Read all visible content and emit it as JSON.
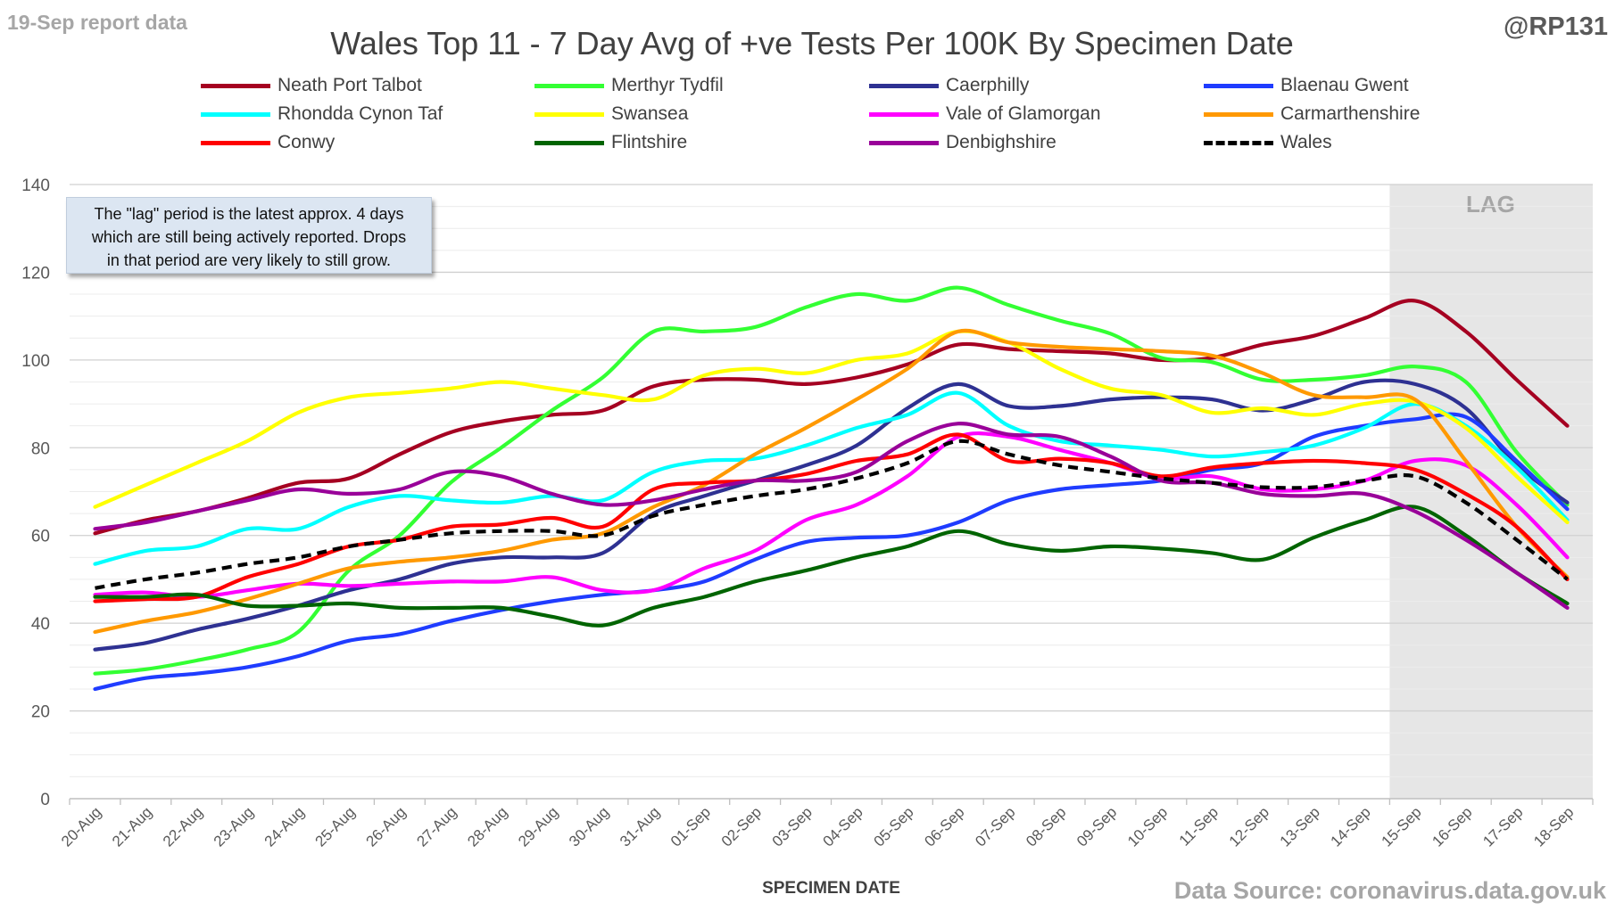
{
  "header": {
    "report_date": "19-Sep report data",
    "handle": "@RP131",
    "title": "Wales Top 11 - 7 Day Avg of +ve Tests Per 100K By Specimen Date",
    "source": "Data Source: coronavirus.data.gov.uk"
  },
  "note": {
    "line1": "The \"lag\" period is the latest approx. 4 days",
    "line2": "which are still being actively reported.  Drops",
    "line3": "in that period are very likely to still grow."
  },
  "chart_data": {
    "type": "line",
    "title": "Wales Top 11 - 7 Day Avg of +ve Tests Per 100K By Specimen Date",
    "xlabel": "SPECIMEN DATE",
    "ylabel": "",
    "ylim": [
      0,
      140
    ],
    "yticks": [
      0,
      20,
      40,
      60,
      80,
      100,
      120,
      140
    ],
    "grid": true,
    "legend_position": "top",
    "lag_label": "LAG",
    "lag_start": "15-Sep",
    "categories": [
      "20-Aug",
      "21-Aug",
      "22-Aug",
      "23-Aug",
      "24-Aug",
      "25-Aug",
      "26-Aug",
      "27-Aug",
      "28-Aug",
      "29-Aug",
      "30-Aug",
      "31-Aug",
      "01-Sep",
      "02-Sep",
      "03-Sep",
      "04-Sep",
      "05-Sep",
      "06-Sep",
      "07-Sep",
      "08-Sep",
      "09-Sep",
      "10-Sep",
      "11-Sep",
      "12-Sep",
      "13-Sep",
      "14-Sep",
      "15-Sep",
      "16-Sep",
      "17-Sep",
      "18-Sep"
    ],
    "series": [
      {
        "name": "Neath Port Talbot",
        "color": "#a50021",
        "dashed": false,
        "values": [
          60.5,
          63.5,
          65.5,
          68.5,
          72,
          73,
          78.5,
          83.5,
          86,
          87.5,
          88.5,
          94,
          95.5,
          95.5,
          94.5,
          96,
          99,
          103.5,
          102.5,
          102,
          101.5,
          100,
          100.5,
          103.5,
          105.5,
          109.5,
          113.5,
          106.5,
          95.5,
          85
        ]
      },
      {
        "name": "Merthyr Tydfil",
        "color": "#33ff33",
        "dashed": false,
        "values": [
          28.5,
          29.5,
          31.5,
          34,
          38,
          52,
          60,
          72,
          80,
          88.5,
          96,
          106.5,
          106.5,
          107.5,
          112,
          115,
          113.5,
          116.5,
          112.5,
          109,
          106,
          100.5,
          99.5,
          95.5,
          95.5,
          96.5,
          98.5,
          95,
          79,
          67
        ]
      },
      {
        "name": "Caerphilly",
        "color": "#2e3192",
        "dashed": false,
        "values": [
          34,
          35.5,
          38.5,
          41,
          44,
          47.5,
          50,
          53.5,
          55,
          55,
          56,
          65,
          69,
          72.5,
          76,
          80.5,
          89,
          94.5,
          89.5,
          89.5,
          91,
          91.5,
          91,
          88.5,
          91,
          95,
          94.5,
          89,
          76,
          67.5
        ]
      },
      {
        "name": "Blaenau Gwent",
        "color": "#1f3cff",
        "dashed": false,
        "values": [
          25,
          27.5,
          28.5,
          30,
          32.5,
          36,
          37.5,
          40.5,
          43,
          45,
          46.5,
          47.5,
          49.5,
          54.5,
          58.5,
          59.5,
          60,
          63,
          68,
          70.5,
          71.5,
          72.5,
          75,
          76.5,
          82.5,
          85,
          86.5,
          87,
          77,
          66
        ]
      },
      {
        "name": "Rhondda Cynon Taf",
        "color": "#00ffff",
        "dashed": false,
        "values": [
          53.5,
          56.5,
          57.5,
          61.5,
          61.5,
          66.5,
          69,
          68,
          67.5,
          69,
          68,
          74.5,
          77,
          77.5,
          80.5,
          84.5,
          87.5,
          92.5,
          85,
          81.5,
          80.5,
          79.5,
          78,
          79,
          80.5,
          84.5,
          90,
          85,
          75.5,
          63.5
        ]
      },
      {
        "name": "Swansea",
        "color": "#ffff00",
        "dashed": false,
        "values": [
          66.5,
          71.5,
          76.5,
          81.5,
          88,
          91.5,
          92.5,
          93.5,
          95,
          93.5,
          92,
          91,
          96.5,
          98,
          97,
          100,
          101.5,
          106.5,
          104,
          98,
          93.5,
          92,
          88,
          89,
          87.5,
          90,
          90.5,
          84.5,
          73.5,
          63
        ]
      },
      {
        "name": "Vale of Glamorgan",
        "color": "#ff00ff",
        "dashed": false,
        "values": [
          46.5,
          47,
          46,
          47.5,
          49,
          48.5,
          49,
          49.5,
          49.5,
          50.5,
          47.5,
          47.5,
          52.5,
          56.5,
          63.5,
          67,
          73.5,
          82.5,
          82.5,
          79.5,
          76.5,
          73,
          73.5,
          70.5,
          70.5,
          72.5,
          77,
          76,
          67,
          55
        ]
      },
      {
        "name": "Carmarthenshire",
        "color": "#ff9900",
        "dashed": false,
        "values": [
          38,
          40.5,
          42.5,
          45.5,
          49,
          52.5,
          54,
          55,
          56.5,
          59,
          60.5,
          66.5,
          71.5,
          78.5,
          84.5,
          91,
          98,
          106.5,
          104,
          103,
          102.5,
          102,
          101,
          97,
          92,
          91.5,
          91,
          77,
          62,
          50.5
        ]
      },
      {
        "name": "Conwy",
        "color": "#ff0000",
        "dashed": false,
        "values": [
          45,
          45.5,
          46,
          50.5,
          53.5,
          57.5,
          59,
          62,
          62.5,
          64,
          62,
          70.5,
          72,
          72.5,
          74,
          77,
          78.5,
          83,
          77,
          77.5,
          76.5,
          73.5,
          75.5,
          76.5,
          77,
          76.5,
          75,
          69.5,
          62,
          50
        ]
      },
      {
        "name": "Flintshire",
        "color": "#006400",
        "dashed": false,
        "values": [
          46,
          46,
          46.5,
          44,
          44,
          44.5,
          43.5,
          43.5,
          43.5,
          41.5,
          39.5,
          43.5,
          46,
          49.5,
          52,
          55,
          57.5,
          61,
          58,
          56.5,
          57.5,
          57,
          56,
          54.5,
          59.5,
          63.5,
          66.5,
          60,
          51.5,
          44.5
        ]
      },
      {
        "name": "Denbighshire",
        "color": "#990099",
        "dashed": false,
        "values": [
          61.5,
          63,
          65.5,
          68,
          70.5,
          69.5,
          70.5,
          74.5,
          73.5,
          69.5,
          67,
          68,
          70.5,
          72.5,
          72.5,
          74.5,
          81.5,
          85.5,
          83,
          82.5,
          78,
          72.5,
          72,
          69.5,
          69,
          69.5,
          65.5,
          59,
          51.5,
          43.5
        ]
      },
      {
        "name": "Wales",
        "color": "#000000",
        "dashed": true,
        "values": [
          48,
          50,
          51.5,
          53.5,
          55,
          57.5,
          59,
          60.5,
          61,
          61,
          60,
          64.5,
          67,
          69,
          70.5,
          73,
          76.5,
          81.5,
          78.5,
          76,
          74.5,
          73,
          72,
          71,
          71,
          72.5,
          73.5,
          67.5,
          59,
          50
        ]
      }
    ]
  }
}
